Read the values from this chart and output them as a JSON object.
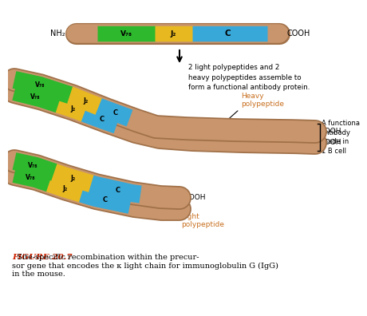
{
  "background_color": "#ffffff",
  "tan_color": "#c8956c",
  "tan_dark": "#a07048",
  "tan_light": "#d4a882",
  "green_color": "#2db82d",
  "yellow_color": "#e8b820",
  "blue_color": "#38a8d8",
  "text_black": "#000000",
  "text_red": "#cc2200",
  "text_orange": "#c87020",
  "text_blue_label": "#206090",
  "label_nh2": "NH₂",
  "label_cooh": "COOH",
  "label_v78": "V₇₈",
  "label_j2": "J₂",
  "label_c": "C",
  "label_heavy": "Heavy\npolypeptide",
  "label_light": "Light\npolypeptide",
  "label_functional": "A functiona\nantibody\nmade in\n1 B cell",
  "label_assemble": "2 light polypeptides and 2\nheavy polypeptides assemble to\nform a functional antibody protein.",
  "figure_label": "FIGURE 20.7",
  "figure_text": "  Site-specific recombination within the precur-\nsor gene that encodes the κ light chain for immunoglobulin G (IgG)\nin the mouse."
}
